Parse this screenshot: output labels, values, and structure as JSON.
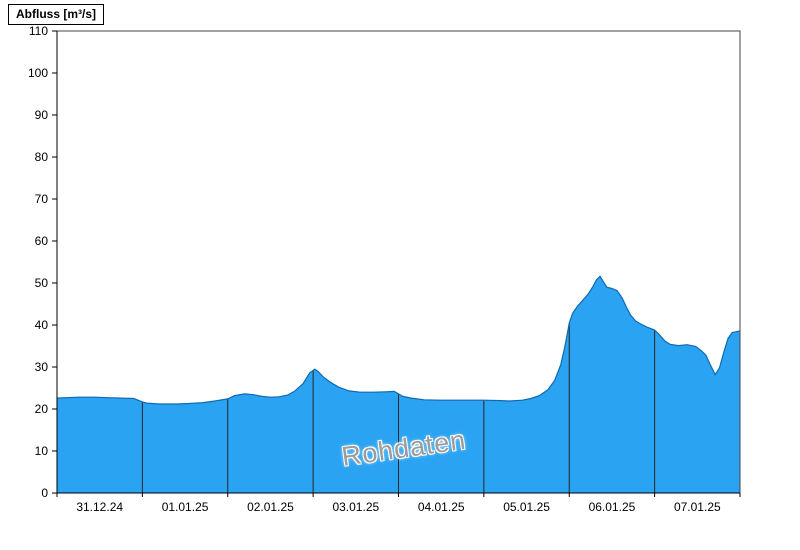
{
  "chart_data": {
    "type": "area",
    "title": "Abfluss [m³/s]",
    "watermark": "Rohdaten",
    "ylabel": "Abfluss [m³/s]",
    "xlabel": "",
    "ylim": [
      0,
      110
    ],
    "ytick_step": 10,
    "ytick_labels": [
      "0",
      "10",
      "20",
      "30",
      "40",
      "50",
      "60",
      "70",
      "80",
      "90",
      "100",
      "110"
    ],
    "x_range_days": [
      0,
      8
    ],
    "x_day_labels": [
      "31.12.24",
      "01.01.25",
      "02.01.25",
      "03.01.25",
      "04.01.25",
      "05.01.25",
      "06.01.25",
      "07.01.25"
    ],
    "grid": "none",
    "legend": "none",
    "colors": {
      "fill": "#2aa3f2",
      "curve": "#0f6ab1",
      "day_boundary_line": "#252525",
      "axis": "#000000",
      "border": "#444444"
    },
    "series": [
      {
        "name": "Abfluss Rohdaten",
        "unit": "m³/s",
        "points": [
          [
            0.0,
            22.6
          ],
          [
            0.1,
            22.7
          ],
          [
            0.25,
            22.8
          ],
          [
            0.45,
            22.8
          ],
          [
            0.6,
            22.7
          ],
          [
            0.75,
            22.6
          ],
          [
            0.9,
            22.5
          ],
          [
            1.0,
            21.7
          ],
          [
            1.05,
            21.4
          ],
          [
            1.2,
            21.2
          ],
          [
            1.4,
            21.2
          ],
          [
            1.55,
            21.3
          ],
          [
            1.7,
            21.5
          ],
          [
            1.85,
            21.9
          ],
          [
            2.0,
            22.4
          ],
          [
            2.08,
            23.2
          ],
          [
            2.2,
            23.6
          ],
          [
            2.3,
            23.4
          ],
          [
            2.4,
            23.0
          ],
          [
            2.5,
            22.8
          ],
          [
            2.6,
            22.9
          ],
          [
            2.7,
            23.3
          ],
          [
            2.78,
            24.2
          ],
          [
            2.88,
            26.0
          ],
          [
            2.96,
            28.6
          ],
          [
            3.02,
            29.5
          ],
          [
            3.06,
            28.9
          ],
          [
            3.12,
            27.6
          ],
          [
            3.2,
            26.4
          ],
          [
            3.3,
            25.2
          ],
          [
            3.42,
            24.3
          ],
          [
            3.55,
            24.0
          ],
          [
            3.7,
            24.0
          ],
          [
            3.85,
            24.1
          ],
          [
            3.95,
            24.2
          ],
          [
            4.0,
            23.6
          ],
          [
            4.05,
            23.0
          ],
          [
            4.15,
            22.6
          ],
          [
            4.3,
            22.2
          ],
          [
            4.5,
            22.1
          ],
          [
            4.8,
            22.1
          ],
          [
            5.0,
            22.1
          ],
          [
            5.2,
            22.0
          ],
          [
            5.3,
            21.9
          ],
          [
            5.45,
            22.1
          ],
          [
            5.55,
            22.5
          ],
          [
            5.65,
            23.2
          ],
          [
            5.75,
            24.6
          ],
          [
            5.83,
            26.8
          ],
          [
            5.9,
            30.5
          ],
          [
            5.95,
            35.0
          ],
          [
            6.0,
            40.5
          ],
          [
            6.04,
            42.8
          ],
          [
            6.1,
            44.6
          ],
          [
            6.16,
            45.9
          ],
          [
            6.22,
            47.3
          ],
          [
            6.27,
            48.9
          ],
          [
            6.32,
            50.8
          ],
          [
            6.36,
            51.6
          ],
          [
            6.4,
            50.3
          ],
          [
            6.44,
            49.0
          ],
          [
            6.5,
            48.7
          ],
          [
            6.56,
            48.2
          ],
          [
            6.62,
            46.4
          ],
          [
            6.67,
            44.2
          ],
          [
            6.72,
            42.3
          ],
          [
            6.78,
            40.9
          ],
          [
            6.85,
            40.1
          ],
          [
            6.92,
            39.4
          ],
          [
            7.0,
            38.8
          ],
          [
            7.06,
            37.6
          ],
          [
            7.12,
            36.2
          ],
          [
            7.18,
            35.4
          ],
          [
            7.28,
            35.1
          ],
          [
            7.38,
            35.3
          ],
          [
            7.48,
            34.9
          ],
          [
            7.55,
            33.8
          ],
          [
            7.6,
            32.8
          ],
          [
            7.66,
            30.2
          ],
          [
            7.71,
            28.2
          ],
          [
            7.76,
            29.8
          ],
          [
            7.81,
            33.5
          ],
          [
            7.86,
            36.8
          ],
          [
            7.91,
            38.2
          ],
          [
            8.0,
            38.6
          ]
        ]
      }
    ]
  }
}
